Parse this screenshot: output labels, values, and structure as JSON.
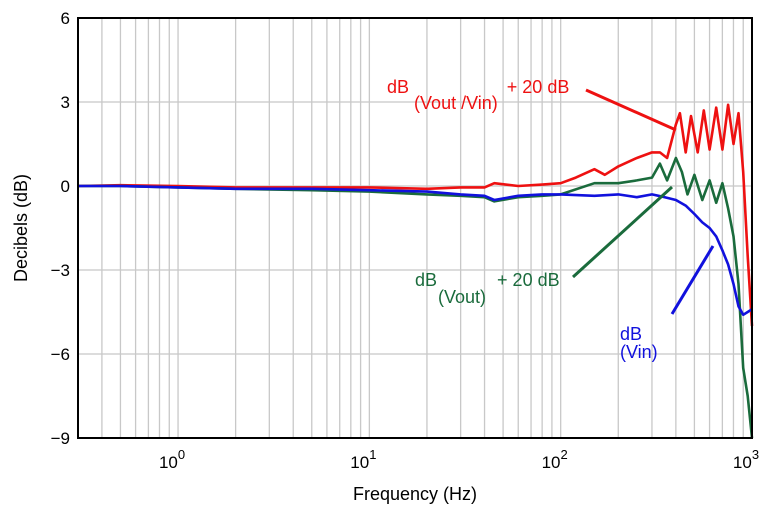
{
  "chart_data": {
    "type": "line",
    "xlabel": "Frequency (Hz)",
    "ylabel": "Decibels (dB)",
    "x_scale": "log",
    "xlim": [
      0.3,
      1000
    ],
    "ylim": [
      -9,
      6
    ],
    "grid": true,
    "x_tick_base": "10",
    "x_ticks": [
      {
        "value": 1,
        "exp": "0"
      },
      {
        "value": 10,
        "exp": "1"
      },
      {
        "value": 100,
        "exp": "2"
      },
      {
        "value": 1000,
        "exp": "3"
      }
    ],
    "y_ticks": [
      {
        "value": 6,
        "label": "6"
      },
      {
        "value": 3,
        "label": "3"
      },
      {
        "value": 0,
        "label": "0"
      },
      {
        "value": -3,
        "label": "−3"
      },
      {
        "value": -6,
        "label": "−6"
      },
      {
        "value": -9,
        "label": "−9"
      }
    ],
    "series": [
      {
        "name": "dB(Vout/Vin) + 20 dB",
        "color": "#ee1111",
        "x": [
          0.3,
          0.5,
          1,
          2,
          5,
          10,
          20,
          30,
          40,
          45,
          60,
          80,
          100,
          120,
          150,
          170,
          200,
          250,
          300,
          330,
          360,
          400,
          420,
          450,
          480,
          520,
          560,
          600,
          650,
          700,
          750,
          800,
          850,
          900,
          950,
          1000
        ],
        "y": [
          0.0,
          0.03,
          0.0,
          -0.05,
          -0.05,
          -0.05,
          -0.1,
          -0.05,
          -0.05,
          0.1,
          0.0,
          0.05,
          0.1,
          0.3,
          0.6,
          0.4,
          0.7,
          1.0,
          1.2,
          1.2,
          1.0,
          2.2,
          2.6,
          1.2,
          2.5,
          1.2,
          2.7,
          1.3,
          2.8,
          1.3,
          2.9,
          1.5,
          2.6,
          0.5,
          -2.5,
          -5.0
        ]
      },
      {
        "name": "dB(Vout) + 20 dB",
        "color": "#1a6b3c",
        "x": [
          0.3,
          0.5,
          1,
          2,
          5,
          10,
          20,
          30,
          40,
          45,
          60,
          80,
          100,
          150,
          200,
          250,
          300,
          330,
          360,
          400,
          430,
          460,
          500,
          550,
          600,
          650,
          700,
          750,
          800,
          850,
          900,
          950,
          1000
        ],
        "y": [
          0.0,
          0.0,
          -0.05,
          -0.1,
          -0.15,
          -0.2,
          -0.3,
          -0.35,
          -0.4,
          -0.55,
          -0.4,
          -0.35,
          -0.3,
          0.1,
          0.1,
          0.2,
          0.3,
          0.8,
          0.2,
          1.0,
          0.5,
          -0.3,
          0.4,
          -0.5,
          0.2,
          -0.6,
          0.1,
          -0.8,
          -1.8,
          -3.5,
          -6.5,
          -7.5,
          -9.0
        ]
      },
      {
        "name": "dB(Vin)",
        "color": "#1111dd",
        "x": [
          0.3,
          0.5,
          1,
          2,
          5,
          10,
          20,
          30,
          40,
          45,
          60,
          80,
          100,
          150,
          200,
          250,
          300,
          350,
          400,
          450,
          500,
          550,
          600,
          650,
          700,
          750,
          800,
          850,
          900,
          950,
          1000
        ],
        "y": [
          0.0,
          0.0,
          -0.05,
          -0.1,
          -0.1,
          -0.15,
          -0.2,
          -0.3,
          -0.35,
          -0.5,
          -0.35,
          -0.3,
          -0.3,
          -0.35,
          -0.3,
          -0.4,
          -0.3,
          -0.4,
          -0.5,
          -0.7,
          -1.0,
          -1.3,
          -1.5,
          -1.8,
          -2.3,
          -2.8,
          -3.5,
          -4.3,
          -4.6,
          -4.5,
          -4.4
        ]
      }
    ],
    "annotations": [
      {
        "base": "dB",
        "sub": "(Vout /Vin)",
        "rest": "+ 20 dB",
        "color": "#ee1111"
      },
      {
        "base": "dB",
        "sub": "(Vout)",
        "rest": "+ 20 dB",
        "color": "#1a6b3c"
      },
      {
        "base": "dB",
        "sub": "(Vin)",
        "rest": "",
        "color": "#1111dd"
      }
    ]
  }
}
